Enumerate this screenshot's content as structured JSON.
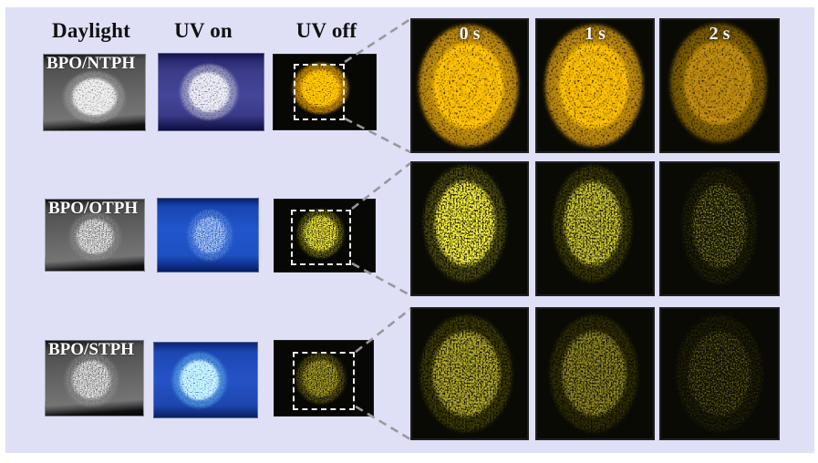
{
  "figure": {
    "column_headers": [
      "Daylight",
      "UV on",
      "UV off"
    ],
    "sample_labels": [
      "BPO/NTPH",
      "BPO/OTPH",
      "BPO/STPH"
    ],
    "time_labels": [
      "0 s",
      "1 s",
      "2 s"
    ],
    "colors": {
      "figure_background": "#dfe0f6",
      "header_text": "#111111",
      "label_white": "#f4f4f4",
      "panel_black": "#070704",
      "connector_gray": "#98989e",
      "dashed_box_white": "#ececec",
      "afterglow_gold": "#f2b606",
      "afterglow_gold_dim": "#c89008",
      "afterglow_yellow": "#ece43a",
      "afterglow_olive": "#aca428",
      "daylight_fingerprint": "#e8e8e8",
      "uv_fingerprint_white": "#e6e6ea",
      "uv_fingerprint_pale_blue": "#d4e8fa",
      "uv_fingerprint_cyan": "#c2eaff",
      "uv_background_indigo": "#45459a",
      "uv_background_blue": "#2156cc"
    }
  }
}
